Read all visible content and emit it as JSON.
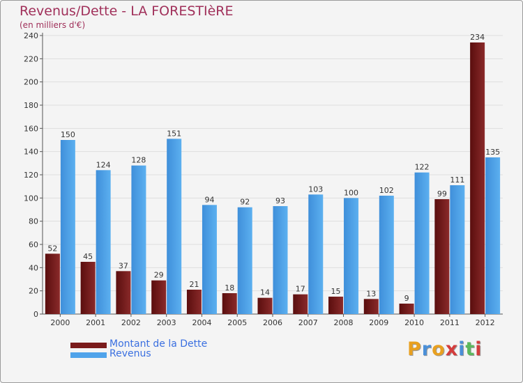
{
  "chart_data": {
    "type": "bar",
    "title": "Revenus/Dette - LA FORESTIèRE",
    "subtitle": "(en milliers d'€)",
    "categories": [
      "2000",
      "2001",
      "2002",
      "2003",
      "2004",
      "2005",
      "2006",
      "2007",
      "2008",
      "2009",
      "2010",
      "2011",
      "2012"
    ],
    "series": [
      {
        "name": "Montant de la Dette",
        "color": "#7a1b1b",
        "values": [
          52,
          45,
          37,
          29,
          21,
          18,
          14,
          17,
          15,
          13,
          9,
          99,
          234
        ]
      },
      {
        "name": "Revenus",
        "color": "#4fa3ea",
        "values": [
          150,
          124,
          128,
          151,
          94,
          92,
          93,
          103,
          100,
          102,
          122,
          111,
          135
        ]
      }
    ],
    "ylim": [
      0,
      240
    ],
    "yticks": [
      0,
      20,
      40,
      60,
      80,
      100,
      120,
      140,
      160,
      180,
      200,
      220,
      240
    ],
    "grid": true,
    "legend": "bottom-left"
  },
  "logo": {
    "letters": [
      "P",
      "r",
      "o",
      "x",
      "i",
      "t",
      "i"
    ],
    "colors": [
      "#e8a020",
      "#4a8fd8",
      "#e8a020",
      "#d43c3c",
      "#4a8fd8",
      "#5cb85c",
      "#d43c3c"
    ]
  }
}
